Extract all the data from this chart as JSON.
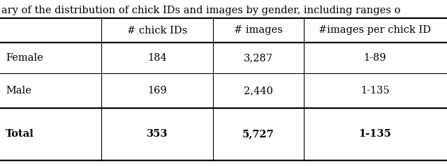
{
  "title_text": "ary of the distribution of chick IDs and images by gender, including ranges o",
  "col_headers": [
    "",
    "# chick IDs",
    "# images",
    "#images per chick ID"
  ],
  "rows": [
    [
      "Female",
      "184",
      "3,287",
      "1-89"
    ],
    [
      "Male",
      "169",
      "2,440",
      "1-135"
    ],
    [
      "Total",
      "353",
      "5,727",
      "1-135"
    ]
  ],
  "font_size": 10.5,
  "bg_color": "#ffffff",
  "text_color": "#000000",
  "title_fontsize": 10.5,
  "lw_thick": 1.6,
  "lw_thin": 0.8
}
